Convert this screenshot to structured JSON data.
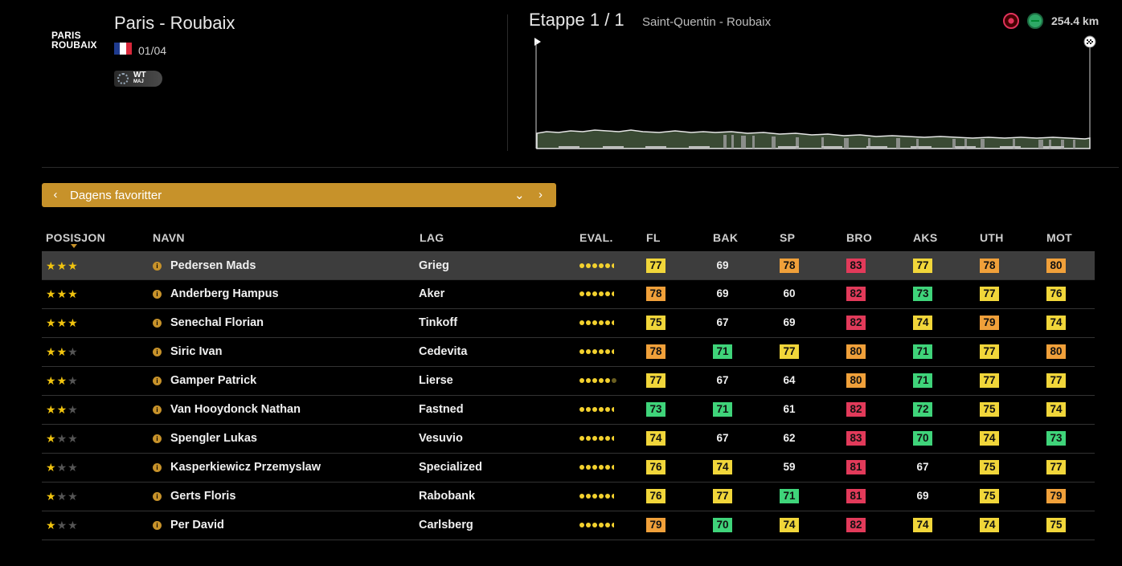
{
  "race": {
    "logo_line1": "PARIS",
    "logo_line2": "ROUBAIX",
    "title": "Paris - Roubaix",
    "date": "01/04",
    "badge_top": "WT",
    "badge_bottom": "MAJ",
    "flag_colors": [
      "#1f3b8f",
      "#ffffff",
      "#d8273a"
    ]
  },
  "stage": {
    "title": "Etappe 1 / 1",
    "route": "Saint-Quentin - Roubaix",
    "distance": "254.4 km",
    "icons": [
      "cobblestone-icon",
      "flat-stage-icon"
    ]
  },
  "favorites": {
    "label": "Dagens favoritter"
  },
  "table": {
    "columns": [
      "POSISJON",
      "NAVN",
      "LAG",
      "EVAL.",
      "FL",
      "BAK",
      "SP",
      "BRO",
      "AKS",
      "UTH",
      "MOT"
    ],
    "rows": [
      {
        "stars": 3,
        "name": "Pedersen Mads",
        "team": "Grieg",
        "eval": 5.5,
        "fl": 77,
        "bak": 69,
        "sp": 78,
        "bro": 83,
        "aks": 77,
        "uth": 78,
        "mot": 80,
        "selected": true
      },
      {
        "stars": 3,
        "name": "Anderberg Hampus",
        "team": "Aker",
        "eval": 5.5,
        "fl": 78,
        "bak": 69,
        "sp": 60,
        "bro": 82,
        "aks": 73,
        "uth": 77,
        "mot": 76
      },
      {
        "stars": 3,
        "name": "Senechal Florian",
        "team": "Tinkoff",
        "eval": 5.5,
        "fl": 75,
        "bak": 67,
        "sp": 69,
        "bro": 82,
        "aks": 74,
        "uth": 79,
        "mot": 74
      },
      {
        "stars": 2,
        "name": "Siric Ivan",
        "team": "Cedevita",
        "eval": 5.5,
        "fl": 78,
        "bak": 71,
        "sp": 77,
        "bro": 80,
        "aks": 71,
        "uth": 77,
        "mot": 80
      },
      {
        "stars": 2,
        "name": "Gamper Patrick",
        "team": "Lierse",
        "eval": 5,
        "fl": 77,
        "bak": 67,
        "sp": 64,
        "bro": 80,
        "aks": 71,
        "uth": 77,
        "mot": 77
      },
      {
        "stars": 2,
        "name": "Van Hooydonck Nathan",
        "team": "Fastned",
        "eval": 5.5,
        "fl": 73,
        "bak": 71,
        "sp": 61,
        "bro": 82,
        "aks": 72,
        "uth": 75,
        "mot": 74
      },
      {
        "stars": 1,
        "name": "Spengler Lukas",
        "team": "Vesuvio",
        "eval": 5.5,
        "fl": 74,
        "bak": 67,
        "sp": 62,
        "bro": 83,
        "aks": 70,
        "uth": 74,
        "mot": 73
      },
      {
        "stars": 1,
        "name": "Kasperkiewicz Przemyslaw",
        "team": "Specialized",
        "eval": 5.5,
        "fl": 76,
        "bak": 74,
        "sp": 59,
        "bro": 81,
        "aks": 67,
        "uth": 75,
        "mot": 77
      },
      {
        "stars": 1,
        "name": "Gerts Floris",
        "team": "Rabobank",
        "eval": 5.5,
        "fl": 76,
        "bak": 77,
        "sp": 71,
        "bro": 81,
        "aks": 69,
        "uth": 75,
        "mot": 79
      },
      {
        "stars": 1,
        "name": "Per David",
        "team": "Carlsberg",
        "eval": 5.5,
        "fl": 79,
        "bak": 70,
        "sp": 74,
        "bro": 82,
        "aks": 74,
        "uth": 74,
        "mot": 75
      }
    ]
  },
  "colors": {
    "accent": "#c7922a",
    "stat_green": "#3fd47a",
    "stat_yellow": "#f1d63a",
    "stat_orange": "#f0a03a",
    "stat_red": "#e23a5a"
  }
}
